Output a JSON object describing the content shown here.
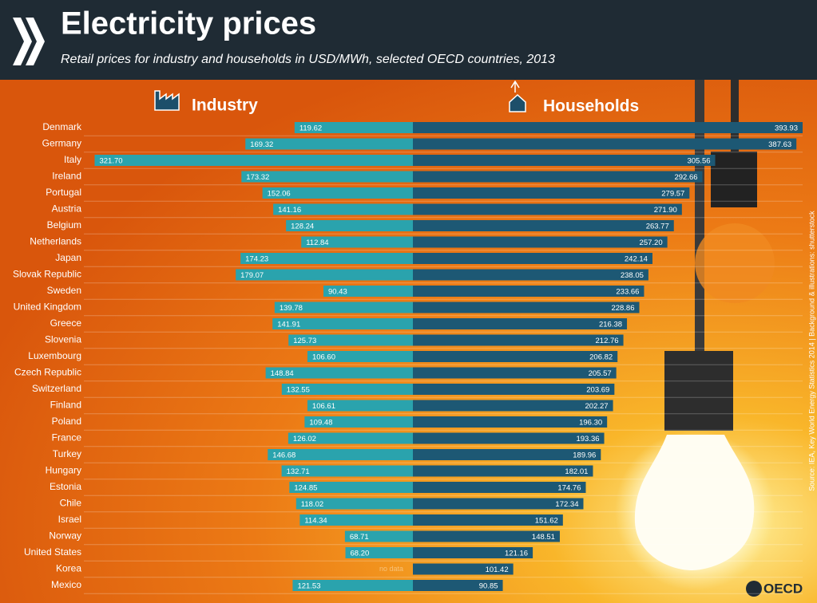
{
  "chart_data": {
    "type": "diverging-bar",
    "title": "Electricity prices",
    "subtitle": "Retail prices for industry and households in USD/MWh, selected OECD countries, 2013",
    "source": "Source: IEA, Key World Energy Statistics 2014 | Background & illustrations: shutterstock",
    "logo": "OECD",
    "categories": [
      "Denmark",
      "Germany",
      "Italy",
      "Ireland",
      "Portugal",
      "Austria",
      "Belgium",
      "Netherlands",
      "Japan",
      "Slovak Republic",
      "Sweden",
      "United Kingdom",
      "Greece",
      "Slovenia",
      "Luxembourg",
      "Czech Republic",
      "Switzerland",
      "Finland",
      "Poland",
      "France",
      "Turkey",
      "Hungary",
      "Estonia",
      "Chile",
      "Israel",
      "Norway",
      "United States",
      "Korea",
      "Mexico"
    ],
    "series": [
      {
        "name": "Industry",
        "color": "#2aa3ad",
        "side": "left",
        "values": [
          119.62,
          169.32,
          321.7,
          173.32,
          152.06,
          141.16,
          128.24,
          112.84,
          174.23,
          179.07,
          90.43,
          139.78,
          141.91,
          125.73,
          106.6,
          148.84,
          132.55,
          106.61,
          109.48,
          126.02,
          146.68,
          132.71,
          124.85,
          118.02,
          114.34,
          68.71,
          68.2,
          null,
          121.53
        ],
        "value_labels": [
          "119.62",
          "169.32",
          "321.70",
          "173.32",
          "152.06",
          "141.16",
          "128.24",
          "112.84",
          "174.23",
          "179.07",
          "90.43",
          "139.78",
          "141.91",
          "125.73",
          "106.60",
          "148.84",
          "132.55",
          "106.61",
          "109.48",
          "126.02",
          "146.68",
          "132.71",
          "124.85",
          "118.02",
          "114.34",
          "68.71",
          "68.20",
          "no data",
          "121.53"
        ]
      },
      {
        "name": "Households",
        "color": "#1d5874",
        "side": "right",
        "values": [
          393.93,
          387.63,
          305.56,
          292.66,
          279.57,
          271.9,
          263.77,
          257.2,
          242.14,
          238.05,
          233.66,
          228.86,
          216.38,
          212.76,
          206.82,
          205.57,
          203.69,
          202.27,
          196.3,
          193.36,
          189.96,
          182.01,
          174.76,
          172.34,
          151.62,
          148.51,
          121.16,
          101.42,
          90.85
        ],
        "value_labels": [
          "393.93",
          "387.63",
          "305.56",
          "292.66",
          "279.57",
          "271.90",
          "263.77",
          "257.20",
          "242.14",
          "238.05",
          "233.66",
          "228.86",
          "216.38",
          "212.76",
          "206.82",
          "205.57",
          "203.69",
          "202.27",
          "196.30",
          "193.36",
          "189.96",
          "182.01",
          "174.76",
          "172.34",
          "151.62",
          "148.51",
          "121.16",
          "101.42",
          "90.85"
        ]
      }
    ]
  }
}
